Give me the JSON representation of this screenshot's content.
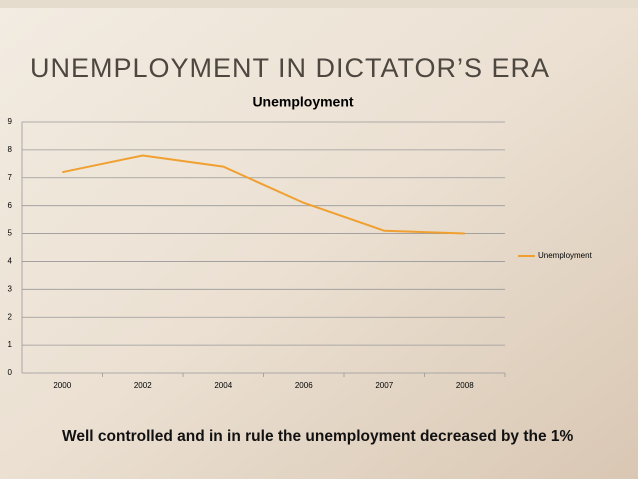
{
  "slide_title": "UNEMPLOYMENT IN DICTATOR’S ERA",
  "chart_data": {
    "type": "line",
    "title": "Unemployment",
    "categories": [
      "2000",
      "2002",
      "2004",
      "2006",
      "2007",
      "2008"
    ],
    "series": [
      {
        "name": "Unemployment",
        "color": "#f0a030",
        "values": [
          7.2,
          7.8,
          7.4,
          6.1,
          5.1,
          5.0
        ]
      }
    ],
    "ylim": [
      0,
      9
    ],
    "yticks": [
      0,
      1,
      2,
      3,
      4,
      5,
      6,
      7,
      8,
      9
    ],
    "grid": true,
    "legend": "right"
  },
  "caption": "Well controlled and in in rule the unemployment decreased by the 1%"
}
